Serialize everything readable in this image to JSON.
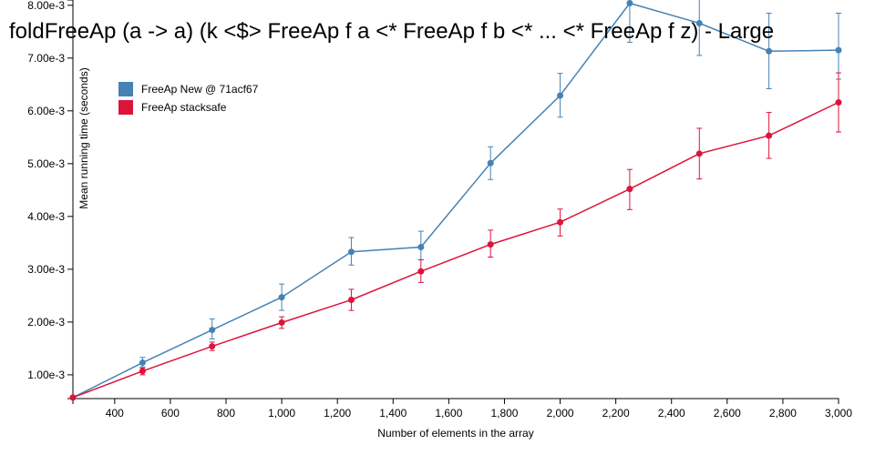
{
  "chart_data": {
    "type": "line",
    "title": "foldFreeAp (a -> a) (k <$> FreeAp f a <* FreeAp f b <* ... <* FreeAp f z) - Large",
    "xlabel": "Number of elements in the array",
    "ylabel": "Mean running time (seconds)",
    "xlim": [
      250,
      3000
    ],
    "ylim": [
      0.00055,
      0.0081
    ],
    "x_ticks": [
      400,
      600,
      800,
      1000,
      1200,
      1400,
      1600,
      1800,
      2000,
      2200,
      2400,
      2600,
      2800,
      3000
    ],
    "x_tick_labels": [
      "400",
      "600",
      "800",
      "1,000",
      "1,200",
      "1,400",
      "1,600",
      "1,800",
      "2,000",
      "2,200",
      "2,400",
      "2,600",
      "2,800",
      "3,000"
    ],
    "y_ticks": [
      0.001,
      0.002,
      0.003,
      0.004,
      0.005,
      0.006,
      0.007,
      0.008
    ],
    "y_tick_labels": [
      "1.00e-3",
      "2.00e-3",
      "3.00e-3",
      "4.00e-3",
      "5.00e-3",
      "6.00e-3",
      "7.00e-3",
      "8.00e-3"
    ],
    "grid": false,
    "legend_position": "top-left",
    "x": [
      250,
      500,
      750,
      1000,
      1250,
      1500,
      1750,
      2000,
      2250,
      2500,
      2750,
      3000
    ],
    "series": [
      {
        "name": "FreeAp New @ 71acf67",
        "color": "#4682b4",
        "values": [
          0.00057,
          0.00123,
          0.00185,
          0.00247,
          0.00333,
          0.00342,
          0.00501,
          0.00629,
          0.00804,
          0.00766,
          0.00713,
          0.00715
        ],
        "err_low": [
          0.00057,
          0.00115,
          0.00168,
          0.00222,
          0.00308,
          0.00318,
          0.0047,
          0.00588,
          0.0073,
          0.00705,
          0.00642,
          0.0066
        ],
        "err_high": [
          0.00057,
          0.00133,
          0.00206,
          0.00272,
          0.0036,
          0.00372,
          0.00532,
          0.00671,
          0.0088,
          0.00825,
          0.00785,
          0.00785
        ]
      },
      {
        "name": "FreeAp stacksafe",
        "color": "#dc143c",
        "values": [
          0.00057,
          0.00107,
          0.00154,
          0.00199,
          0.00242,
          0.00296,
          0.00347,
          0.00389,
          0.00452,
          0.00519,
          0.00553,
          0.00616
        ],
        "err_low": [
          0.00057,
          0.001,
          0.00146,
          0.00188,
          0.00222,
          0.00275,
          0.00323,
          0.00363,
          0.00413,
          0.00471,
          0.0051,
          0.0056
        ],
        "err_high": [
          0.00057,
          0.00113,
          0.00162,
          0.0021,
          0.00262,
          0.00318,
          0.00374,
          0.00414,
          0.00489,
          0.00567,
          0.00597,
          0.00672
        ]
      }
    ]
  }
}
